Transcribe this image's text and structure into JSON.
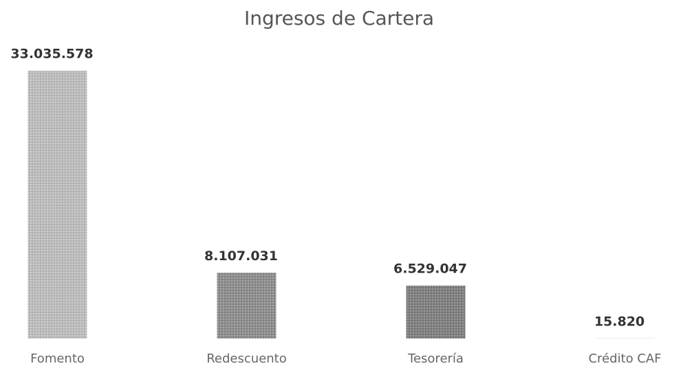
{
  "chart_data": {
    "type": "bar",
    "title": "Ingresos de Cartera",
    "categories": [
      "Fomento",
      "Redescuento",
      "Tesorería",
      "Crédito CAF"
    ],
    "values": [
      33035578,
      8107031,
      6529047,
      15820
    ],
    "value_labels": [
      "33.035.578",
      "8.107.031",
      "6.529.047",
      "15.820"
    ],
    "colors": [
      "#bcbcbc",
      "#8c8c8c",
      "#7e7e7e",
      "#8c8c8c"
    ]
  }
}
